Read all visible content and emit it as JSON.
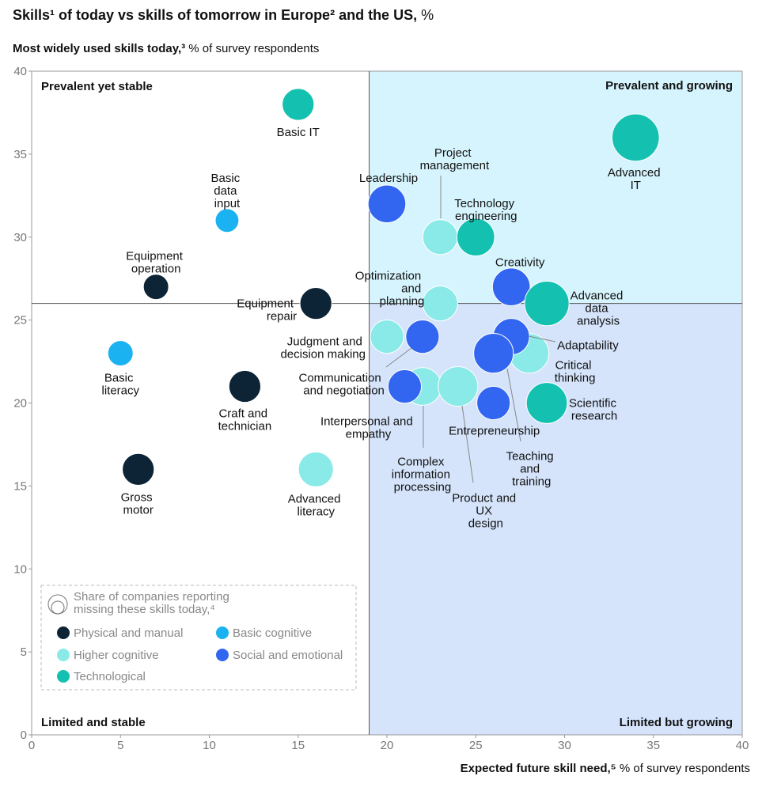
{
  "chart_data": {
    "type": "scatter",
    "title": "Skills¹ of today vs skills of tomorrow in Europe² and the US,",
    "title_unit": "%",
    "y_label": "Most widely used skills today,³",
    "y_label_unit": "% of survey respondents",
    "x_label": "Expected future skill need,⁵",
    "x_label_unit": "% of survey respondents",
    "quadrant_labels": {
      "top_left": "Prevalent yet stable",
      "top_right": "Prevalent and growing",
      "bottom_left": "Limited and stable",
      "bottom_right": "Limited but growing"
    },
    "quadrant_split": {
      "x": 19,
      "y": 26
    },
    "size_legend": "Share of companies reporting missing these skills today,⁴ %",
    "xlim": [
      0,
      40
    ],
    "ylim": [
      0,
      40
    ],
    "xticks": [
      0,
      5,
      10,
      15,
      20,
      25,
      30,
      35,
      40
    ],
    "yticks": [
      0,
      5,
      10,
      15,
      20,
      25,
      30,
      35,
      40
    ],
    "series": [
      {
        "name": "Physical and manual",
        "color": "#0d2436",
        "labels": [
          "Equipment operation",
          "Equipment repair",
          "Craft and technician",
          "Gross motor"
        ],
        "x": [
          7,
          16,
          12,
          6
        ],
        "y": [
          27,
          26,
          21,
          16
        ],
        "sizes": [
          12.6,
          20,
          20,
          20
        ]
      },
      {
        "name": "Basic cognitive",
        "color": "#1ab2f0",
        "labels": [
          "Basic data input",
          "Basic literacy"
        ],
        "x": [
          11,
          5
        ],
        "y": [
          31,
          23
        ],
        "sizes": [
          11,
          12.6
        ]
      },
      {
        "name": "Higher cognitive",
        "color": "#8aeae8",
        "labels": [
          "Project management",
          "Optimization and planning",
          "Judgment and decision making",
          "Complex information processing",
          "Product and UX design",
          "Critical thinking",
          "Advanced literacy"
        ],
        "x": [
          23,
          23,
          20,
          22,
          24,
          28,
          16
        ],
        "y": [
          30,
          26,
          24,
          21,
          21,
          23,
          16
        ],
        "sizes": [
          24,
          24,
          22,
          28,
          31,
          31,
          24
        ]
      },
      {
        "name": "Social and emotional",
        "color": "#3366f0",
        "labels": [
          "Leadership",
          "Creativity",
          "Adaptability",
          "Communication and negotiation",
          "Interpersonal and empathy",
          "Entrepreneurship",
          "Teaching and training"
        ],
        "x": [
          20,
          27,
          27,
          22,
          21,
          26,
          26
        ],
        "y": [
          32,
          27,
          24,
          24,
          21,
          20,
          23
        ],
        "sizes": [
          28,
          28,
          26,
          22,
          22,
          22,
          31
        ]
      },
      {
        "name": "Technological",
        "color": "#14c1b0",
        "labels": [
          "Basic IT",
          "Advanced IT",
          "Technology engineering",
          "Advanced data analysis",
          "Scientific research"
        ],
        "x": [
          15,
          34,
          25,
          29,
          29
        ],
        "y": [
          38,
          36,
          30,
          26,
          20
        ],
        "sizes": [
          20,
          44,
          28,
          39,
          33
        ]
      }
    ]
  }
}
